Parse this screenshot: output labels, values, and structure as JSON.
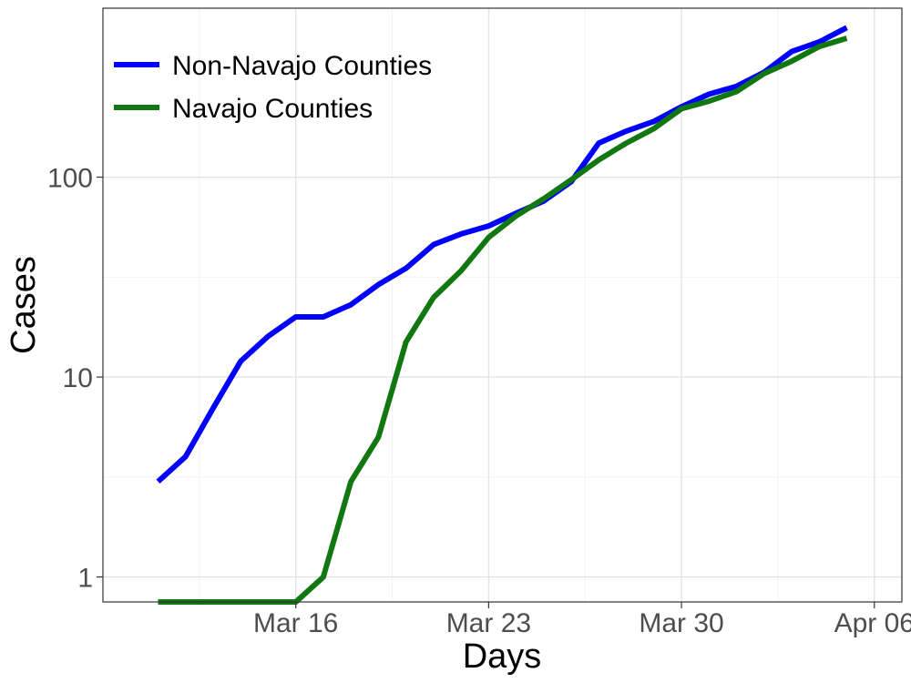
{
  "chart_data": {
    "type": "line",
    "xlabel": "Days",
    "ylabel": "Cases",
    "y_scale": "log10",
    "ylim": [
      0.75,
      700
    ],
    "xlim": [
      "2020-03-09",
      "2020-04-07"
    ],
    "x_ticks": [
      {
        "date": "2020-03-16",
        "label": "Mar 16"
      },
      {
        "date": "2020-03-23",
        "label": "Mar 23"
      },
      {
        "date": "2020-03-30",
        "label": "Mar 30"
      },
      {
        "date": "2020-04-06",
        "label": "Apr 06"
      }
    ],
    "y_ticks": [
      {
        "value": 1,
        "label": "1"
      },
      {
        "value": 10,
        "label": "10"
      },
      {
        "value": 100,
        "label": "100"
      }
    ],
    "grid": true,
    "legend_position": "top-left",
    "x": [
      "2020-03-11",
      "2020-03-12",
      "2020-03-13",
      "2020-03-14",
      "2020-03-15",
      "2020-03-16",
      "2020-03-17",
      "2020-03-18",
      "2020-03-19",
      "2020-03-20",
      "2020-03-21",
      "2020-03-22",
      "2020-03-23",
      "2020-03-24",
      "2020-03-25",
      "2020-03-26",
      "2020-03-27",
      "2020-03-28",
      "2020-03-29",
      "2020-03-30",
      "2020-03-31",
      "2020-04-01",
      "2020-04-02",
      "2020-04-03",
      "2020-04-04",
      "2020-04-05"
    ],
    "series": [
      {
        "name": "Non-Navajo Counties",
        "color": "#0000ff",
        "values": [
          3,
          4,
          7,
          12,
          16,
          20,
          20,
          23,
          29,
          35,
          46,
          52,
          57,
          66,
          76,
          95,
          148,
          170,
          190,
          225,
          260,
          285,
          335,
          425,
          475,
          560
        ]
      },
      {
        "name": "Navajo Counties",
        "color": "#117711",
        "values": [
          0.75,
          0.75,
          0.75,
          0.75,
          0.75,
          0.75,
          1,
          3,
          5,
          15,
          25,
          34,
          50,
          64,
          78,
          97,
          122,
          148,
          175,
          220,
          240,
          268,
          330,
          380,
          450,
          495
        ]
      }
    ]
  }
}
